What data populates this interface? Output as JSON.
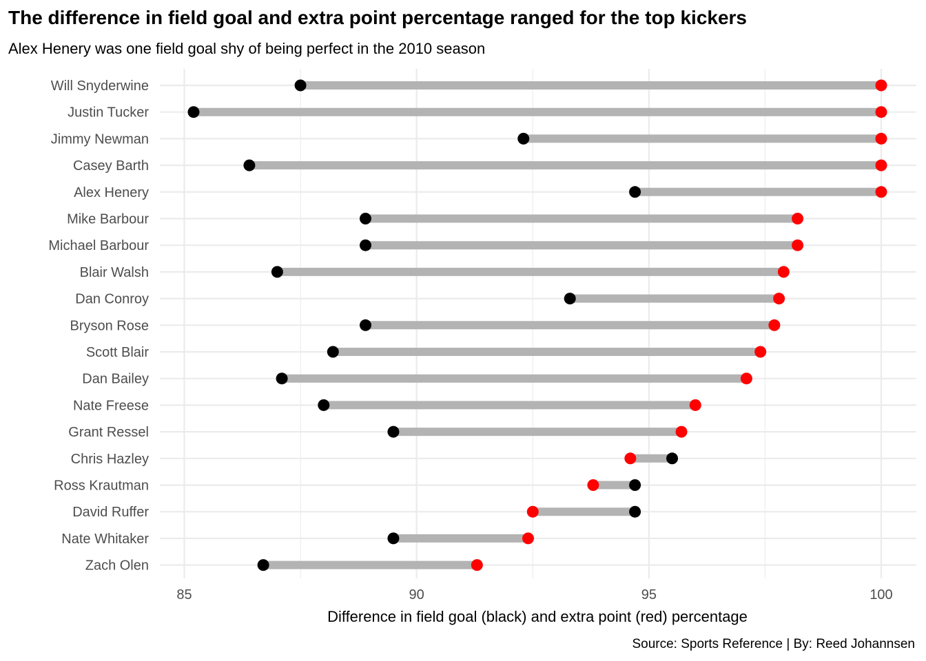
{
  "chart_data": {
    "type": "dumbbell",
    "title": "The difference in field goal and extra point percentage ranged for the top kickers",
    "subtitle": "Alex Henery was one field goal shy of being perfect in the 2010 season",
    "xlabel": "Difference in field goal (black) and extra point (red) percentage",
    "caption": "Source: Sports Reference | By: Reed Johannsen",
    "xlim": [
      84.9,
      100.75
    ],
    "xticks": [
      85,
      90,
      95,
      100
    ],
    "grid": true,
    "colors": {
      "field_goal": "#000000",
      "extra_point": "#ff0000",
      "segment": "#b3b3b3"
    },
    "players": [
      {
        "name": "Will Snyderwine",
        "fg": 87.5,
        "xp": 100
      },
      {
        "name": "Justin Tucker",
        "fg": 85.2,
        "xp": 100
      },
      {
        "name": "Jimmy Newman",
        "fg": 92.3,
        "xp": 100
      },
      {
        "name": "Casey Barth",
        "fg": 86.4,
        "xp": 100
      },
      {
        "name": "Alex Henery",
        "fg": 94.7,
        "xp": 100
      },
      {
        "name": "Mike Barbour",
        "fg": 88.9,
        "xp": 98.2
      },
      {
        "name": "Michael Barbour",
        "fg": 88.9,
        "xp": 98.2
      },
      {
        "name": "Blair Walsh",
        "fg": 87.0,
        "xp": 97.9
      },
      {
        "name": "Dan Conroy",
        "fg": 93.3,
        "xp": 97.8
      },
      {
        "name": "Bryson Rose",
        "fg": 88.9,
        "xp": 97.7
      },
      {
        "name": "Scott Blair",
        "fg": 88.2,
        "xp": 97.4
      },
      {
        "name": "Dan Bailey",
        "fg": 87.1,
        "xp": 97.1
      },
      {
        "name": "Nate Freese",
        "fg": 88.0,
        "xp": 96.0
      },
      {
        "name": "Grant Ressel",
        "fg": 89.5,
        "xp": 95.7
      },
      {
        "name": "Chris Hazley",
        "fg": 95.5,
        "xp": 94.6
      },
      {
        "name": "Ross Krautman",
        "fg": 94.7,
        "xp": 93.8
      },
      {
        "name": "David Ruffer",
        "fg": 94.7,
        "xp": 92.5
      },
      {
        "name": "Nate Whitaker",
        "fg": 89.5,
        "xp": 92.4
      },
      {
        "name": "Zach Olen",
        "fg": 86.7,
        "xp": 91.3
      }
    ]
  }
}
